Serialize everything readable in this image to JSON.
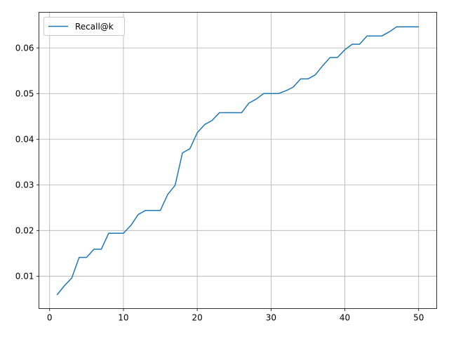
{
  "chart_data": {
    "type": "line",
    "title": "",
    "xlabel": "",
    "ylabel": "",
    "xlim": [
      -1.45,
      52.45
    ],
    "ylim": [
      0.0029,
      0.0678
    ],
    "xticks": [
      0,
      10,
      20,
      30,
      40,
      50
    ],
    "yticks": [
      0.01,
      0.02,
      0.03,
      0.04,
      0.05,
      0.06
    ],
    "ytick_labels": [
      "0.01",
      "0.02",
      "0.03",
      "0.04",
      "0.05",
      "0.06"
    ],
    "grid": true,
    "legend_position": "top-left",
    "series": [
      {
        "name": "Recall@k",
        "color": "#1f77b4",
        "x": [
          1,
          2,
          3,
          4,
          5,
          6,
          7,
          8,
          9,
          10,
          11,
          12,
          13,
          14,
          15,
          16,
          17,
          18,
          19,
          20,
          21,
          22,
          23,
          24,
          25,
          26,
          27,
          28,
          29,
          30,
          31,
          32,
          33,
          34,
          35,
          36,
          37,
          38,
          39,
          40,
          41,
          42,
          43,
          44,
          45,
          46,
          47,
          48,
          49,
          50
        ],
        "values": [
          0.0059,
          0.0079,
          0.0096,
          0.0141,
          0.0141,
          0.0159,
          0.0159,
          0.0194,
          0.0194,
          0.0194,
          0.0211,
          0.0235,
          0.0244,
          0.0244,
          0.0244,
          0.0279,
          0.0299,
          0.037,
          0.0379,
          0.0414,
          0.0432,
          0.0441,
          0.0458,
          0.0458,
          0.0458,
          0.0458,
          0.0479,
          0.0488,
          0.05,
          0.05,
          0.05,
          0.0506,
          0.0514,
          0.0532,
          0.0532,
          0.0541,
          0.0561,
          0.0579,
          0.0579,
          0.0596,
          0.0608,
          0.0608,
          0.0626,
          0.0626,
          0.0626,
          0.0635,
          0.0646,
          0.0646,
          0.0646,
          0.0646
        ]
      }
    ]
  }
}
